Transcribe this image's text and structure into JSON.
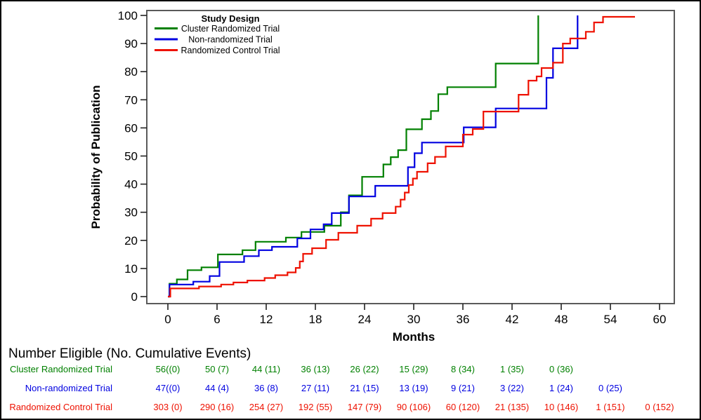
{
  "figure": {
    "background": "#ffffff",
    "border_color": "#000000",
    "plot_border_color": "#5a5a5a"
  },
  "chart_data": {
    "type": "line",
    "subtype": "step-cumulative-incidence",
    "title": "",
    "xlabel": "Months",
    "ylabel": "Probability of Publication",
    "xlim": [
      -2.6,
      61.8
    ],
    "ylim": [
      -2.5,
      101.8
    ],
    "xticks": [
      0,
      6,
      12,
      18,
      24,
      30,
      36,
      42,
      48,
      54,
      60
    ],
    "yticks": [
      0,
      10,
      20,
      30,
      40,
      50,
      60,
      70,
      80,
      90,
      100
    ],
    "grid": false,
    "legend": {
      "title": "Study Design",
      "position": "top-left-inside"
    },
    "series": [
      {
        "name": "Cluster Randomized Trial",
        "color": "#008000",
        "steps": [
          [
            0,
            0
          ],
          [
            0.2,
            4.6
          ],
          [
            1.1,
            6.1
          ],
          [
            2.4,
            9.4
          ],
          [
            4.1,
            10.4
          ],
          [
            6.1,
            15.0
          ],
          [
            9.1,
            16.5
          ],
          [
            10.7,
            19.5
          ],
          [
            14.4,
            21.0
          ],
          [
            16.3,
            23.0
          ],
          [
            19.1,
            25.2
          ],
          [
            21.1,
            30.0
          ],
          [
            22.1,
            36.0
          ],
          [
            23.7,
            42.6
          ],
          [
            26.3,
            47.0
          ],
          [
            27.2,
            49.6
          ],
          [
            28.1,
            52.1
          ],
          [
            29.1,
            59.5
          ],
          [
            31.0,
            63.1
          ],
          [
            32.1,
            66.0
          ],
          [
            33.0,
            72.0
          ],
          [
            34.1,
            74.5
          ],
          [
            40.0,
            82.9
          ],
          [
            45.2,
            100.0
          ]
        ]
      },
      {
        "name": "Non-randomized Trial",
        "color": "#0000e0",
        "steps": [
          [
            0,
            0
          ],
          [
            0.2,
            4.3
          ],
          [
            3.1,
            5.3
          ],
          [
            5.1,
            7.3
          ],
          [
            6.3,
            12.3
          ],
          [
            9.3,
            14.4
          ],
          [
            11.1,
            16.5
          ],
          [
            12.7,
            17.7
          ],
          [
            15.8,
            20.7
          ],
          [
            17.4,
            23.9
          ],
          [
            19.0,
            25.7
          ],
          [
            20.0,
            29.7
          ],
          [
            22.1,
            35.6
          ],
          [
            25.3,
            39.4
          ],
          [
            29.3,
            46.0
          ],
          [
            30.1,
            51.0
          ],
          [
            31.0,
            54.8
          ],
          [
            36.1,
            60.2
          ],
          [
            40.0,
            66.9
          ],
          [
            46.2,
            77.8
          ],
          [
            47.0,
            88.3
          ],
          [
            50.0,
            100.0
          ]
        ]
      },
      {
        "name": "Randomized Control Trial",
        "color": "#ee1100",
        "steps": [
          [
            0,
            0
          ],
          [
            0.3,
            2.9
          ],
          [
            3.8,
            3.6
          ],
          [
            6.5,
            4.3
          ],
          [
            8.0,
            5.0
          ],
          [
            9.7,
            5.7
          ],
          [
            11.8,
            6.6
          ],
          [
            13.1,
            7.6
          ],
          [
            14.6,
            8.6
          ],
          [
            15.6,
            10.2
          ],
          [
            16.1,
            12.5
          ],
          [
            16.5,
            15.2
          ],
          [
            17.6,
            17.2
          ],
          [
            19.3,
            20.2
          ],
          [
            20.8,
            22.7
          ],
          [
            23.1,
            25.2
          ],
          [
            24.8,
            27.7
          ],
          [
            26.2,
            29.7
          ],
          [
            27.8,
            32.0
          ],
          [
            28.4,
            34.5
          ],
          [
            28.9,
            37.0
          ],
          [
            29.4,
            39.7
          ],
          [
            29.9,
            42.0
          ],
          [
            30.4,
            44.4
          ],
          [
            31.7,
            47.4
          ],
          [
            32.6,
            49.7
          ],
          [
            33.9,
            53.4
          ],
          [
            36.0,
            57.6
          ],
          [
            37.2,
            59.6
          ],
          [
            38.5,
            65.8
          ],
          [
            42.8,
            71.8
          ],
          [
            44.0,
            76.8
          ],
          [
            45.0,
            78.3
          ],
          [
            45.6,
            81.3
          ],
          [
            47.0,
            83.2
          ],
          [
            48.2,
            90.0
          ],
          [
            49.1,
            91.8
          ],
          [
            51.0,
            94.2
          ],
          [
            52.0,
            97.5
          ],
          [
            53.1,
            99.5
          ],
          [
            57.0,
            99.5
          ]
        ]
      }
    ]
  },
  "risk_table": {
    "title": "Number Eligible (No. Cumulative Events)",
    "months": [
      0,
      6,
      12,
      18,
      24,
      30,
      36,
      42,
      48,
      54,
      60
    ],
    "rows": [
      {
        "label": "Cluster Randomized Trial",
        "values": [
          "56((0)",
          "50 (7)",
          "44 (11)",
          "36 (13)",
          "26 (22)",
          "15 (29)",
          "8 (34)",
          "1 (35)",
          "0 (36)"
        ]
      },
      {
        "label": "Non-randomized Trial",
        "values": [
          "47((0)",
          "44 (4)",
          "36 (8)",
          "27 (11)",
          "21 (15)",
          "13 (19)",
          "9 (21)",
          "3 (22)",
          "1 (24)",
          "0 (25)"
        ]
      },
      {
        "label": "Randomized Control Trial",
        "values": [
          "303 (0)",
          "290 (16)",
          "254 (27)",
          "192 (55)",
          "147 (79)",
          "90 (106)",
          "60 (120)",
          "21 (135)",
          "10 (146)",
          "1 (151)",
          "0 (152)"
        ]
      }
    ]
  }
}
